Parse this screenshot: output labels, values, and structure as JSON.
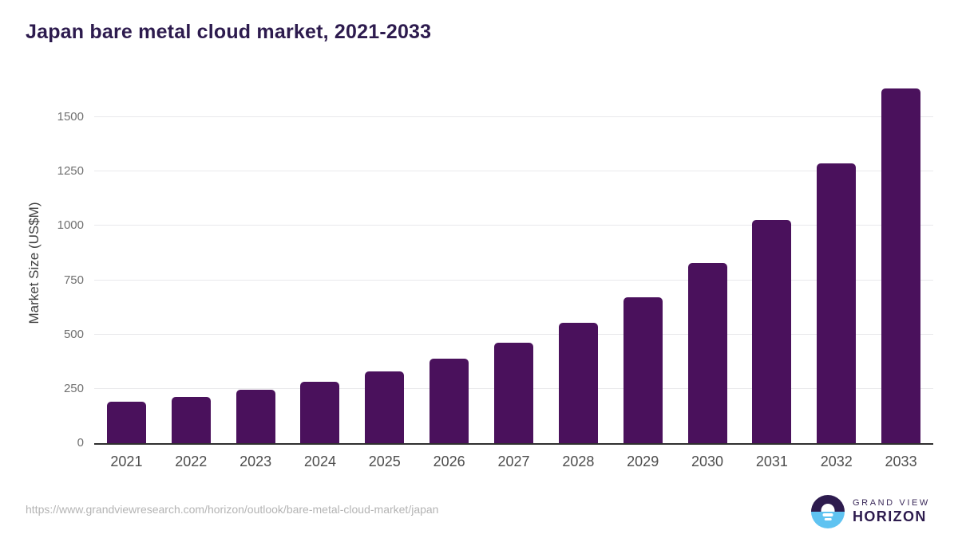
{
  "title": "Japan bare metal cloud market, 2021-2033",
  "chart_data": {
    "type": "bar",
    "title": "Japan bare metal cloud market, 2021-2033",
    "categories": [
      "2021",
      "2022",
      "2023",
      "2024",
      "2025",
      "2026",
      "2027",
      "2028",
      "2029",
      "2030",
      "2031",
      "2032",
      "2033"
    ],
    "values": [
      190,
      214,
      246,
      281,
      329,
      388,
      461,
      555,
      673,
      830,
      1027,
      1287,
      1632
    ],
    "series_name": "Market Size",
    "xlabel": "",
    "ylabel": "Market Size (US$M)",
    "ylim": [
      0,
      1680
    ],
    "yticks": [
      0,
      250,
      500,
      750,
      1000,
      1250,
      1500
    ],
    "grid": "horizontal-only",
    "legend": "none",
    "bar_color": "#4a115c"
  },
  "colors": {
    "title_text": "#2d1b4e",
    "bar": "#4a115c",
    "gridline": "#e9e9ec",
    "axis_line": "#2f2f2f",
    "y_tick_text": "#707070",
    "x_tick_text": "#4d4d4d",
    "url_text": "#b4b4b4",
    "logo_purple": "#2d1b4e",
    "logo_blue": "#5fc3f1"
  },
  "footer": {
    "source_url": "https://www.grandviewresearch.com/horizon/outlook/bare-metal-cloud-market/japan",
    "logo": {
      "icon": "horizon-sunrise-circle-icon",
      "line1": "GRAND VIEW",
      "line2": "HORIZON"
    }
  }
}
